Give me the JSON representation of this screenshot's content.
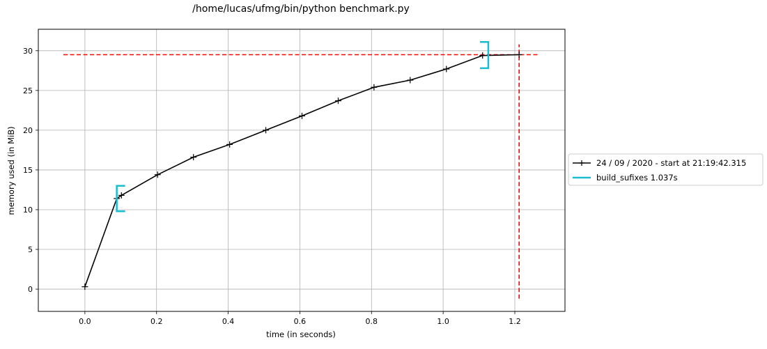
{
  "chart_data": {
    "type": "line",
    "title": "/home/lucas/ufmg/bin/python benchmark.py",
    "xlabel": "time (in seconds)",
    "ylabel": "memory used (in MiB)",
    "xlim": [
      -0.13,
      1.34
    ],
    "ylim": [
      -2.8,
      32.7
    ],
    "xticks": [
      0.0,
      0.2,
      0.4,
      0.6,
      0.8,
      1.0,
      1.2
    ],
    "xtick_labels": [
      "0.0",
      "0.2",
      "0.4",
      "0.6",
      "0.8",
      "1.0",
      "1.2"
    ],
    "yticks": [
      0,
      5,
      10,
      15,
      20,
      25,
      30
    ],
    "ytick_labels": [
      "0",
      "5",
      "10",
      "15",
      "20",
      "25",
      "30"
    ],
    "grid": true,
    "legend_position": "outside-right",
    "series": [
      {
        "name": "24 / 09 / 2020 - start at 21:19:42.315",
        "color": "#000000",
        "marker": "plus",
        "x": [
          0.0,
          0.089,
          0.102,
          0.203,
          0.303,
          0.404,
          0.505,
          0.606,
          0.707,
          0.807,
          0.908,
          1.009,
          1.11,
          1.212
        ],
        "y": [
          0.3,
          11.4,
          11.8,
          14.4,
          16.6,
          18.2,
          20.0,
          21.8,
          23.7,
          25.4,
          26.3,
          27.7,
          29.4,
          29.5
        ]
      }
    ],
    "function_markers": [
      {
        "name": "build_sufixes 1.037s",
        "color": "#17becf",
        "start_x": 0.089,
        "end_x": 1.126,
        "y_low": 9.8,
        "y_high": 13.0,
        "end_y_low": 27.8,
        "end_y_high": 31.1
      }
    ],
    "reference_lines": [
      {
        "orientation": "horizontal",
        "value": 29.5,
        "x_from": -0.06,
        "x_to": 1.27,
        "color": "#ff0000",
        "style": "dashed"
      },
      {
        "orientation": "vertical",
        "value": 1.212,
        "y_from": -1.2,
        "y_to": 30.8,
        "color": "#ff0000",
        "style": "dashed"
      }
    ]
  }
}
